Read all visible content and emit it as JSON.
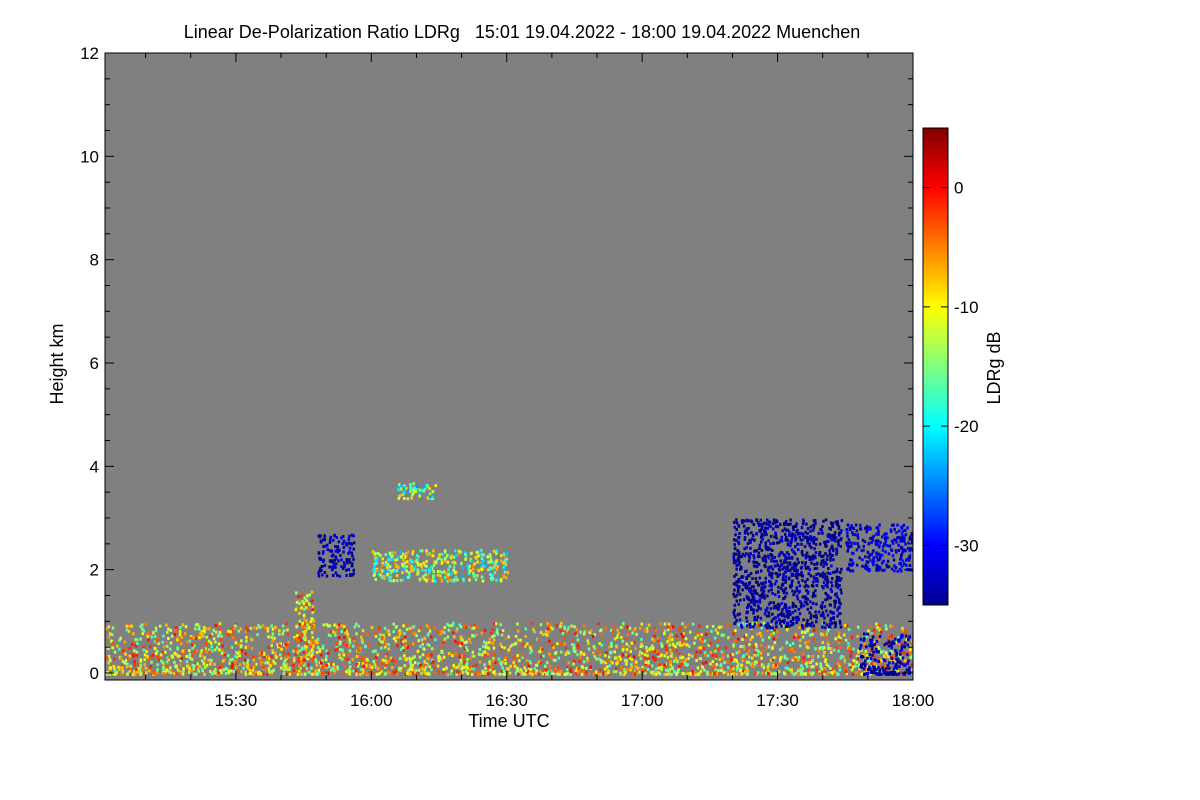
{
  "chart_data": {
    "type": "heatmap",
    "title": "Linear De-Polarization Ratio LDRg   15:01 19.04.2022 - 18:00 19.04.2022 Muenchen",
    "xlabel": "Time UTC",
    "ylabel": "Height km",
    "x_range_minutes": [
      901,
      1080
    ],
    "x_ticks": [
      {
        "label": "15:30",
        "minutes": 930
      },
      {
        "label": "16:00",
        "minutes": 960
      },
      {
        "label": "16:30",
        "minutes": 990
      },
      {
        "label": "17:00",
        "minutes": 1020
      },
      {
        "label": "17:30",
        "minutes": 1050
      },
      {
        "label": "18:00",
        "minutes": 1080
      }
    ],
    "ylim": [
      0,
      12
    ],
    "y_ticks": [
      {
        "label": "0",
        "value": 0
      },
      {
        "label": "2",
        "value": 2
      },
      {
        "label": "4",
        "value": 4
      },
      {
        "label": "6",
        "value": 6
      },
      {
        "label": "8",
        "value": 8
      },
      {
        "label": "10",
        "value": 10
      },
      {
        "label": "12",
        "value": 12
      }
    ],
    "no_signal_color": "#808080",
    "colorbar": {
      "label": "LDRg dB",
      "range": [
        -35,
        5
      ],
      "ticks": [
        {
          "label": "0",
          "value": 0
        },
        {
          "label": "-10",
          "value": -10
        },
        {
          "label": "-20",
          "value": -20
        },
        {
          "label": "-30",
          "value": -30
        }
      ],
      "colormap": "jet"
    },
    "regions": [
      {
        "name": "boundary-layer aerosol",
        "t_start": 901,
        "t_end": 1080,
        "h_min": 0.0,
        "h_max": 1.0,
        "ldr_mean": -9
      },
      {
        "name": "cloud streaks 15:45",
        "t_start": 943,
        "t_end": 947,
        "h_min": 0.3,
        "h_max": 1.6,
        "ldr_mean": -9
      },
      {
        "name": "ice cloud 15:50",
        "t_start": 948,
        "t_end": 956,
        "h_min": 1.9,
        "h_max": 2.7,
        "ldr_mean": -33
      },
      {
        "name": "scattered layer 16:00-16:30",
        "t_start": 960,
        "t_end": 990,
        "h_min": 1.8,
        "h_max": 2.4,
        "ldr_mean": -14
      },
      {
        "name": "thin layer 16:10",
        "t_start": 965,
        "t_end": 974,
        "h_min": 3.4,
        "h_max": 3.7,
        "ldr_mean": -16
      },
      {
        "name": "convective cloud 17:20-17:40",
        "t_start": 1040,
        "t_end": 1064,
        "h_min": 0.9,
        "h_max": 3.0,
        "ldr_mean": -34
      },
      {
        "name": "cloud 17:50-18:00",
        "t_start": 1065,
        "t_end": 1080,
        "h_min": 2.0,
        "h_max": 2.9,
        "ldr_mean": -32
      },
      {
        "name": "low cloud 17:50-18:00",
        "t_start": 1068,
        "t_end": 1079,
        "h_min": 0.0,
        "h_max": 0.8,
        "ldr_mean": -33
      }
    ]
  }
}
